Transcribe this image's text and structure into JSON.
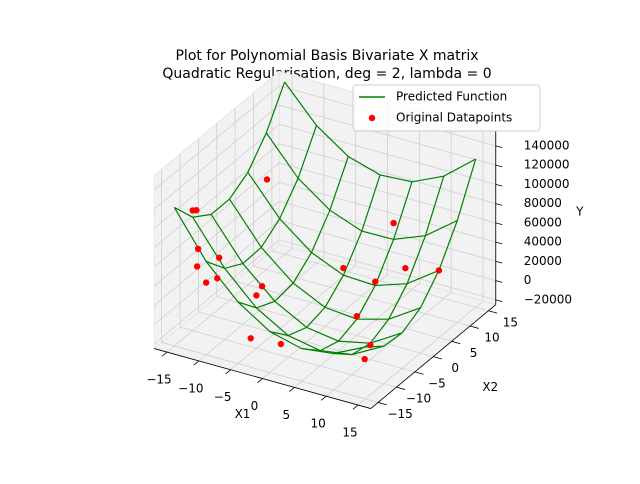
{
  "chart_data": {
    "type": "surface3d",
    "title": "Plot for Polynomial Basis Bivariate X matrix",
    "subtitle": "Quadratic Regularisation, deg = 2, lambda = 0",
    "xlabel": "X1",
    "ylabel": "X2",
    "zlabel": "Y",
    "xlim": [
      -17,
      17
    ],
    "ylim": [
      -17,
      17
    ],
    "zlim": [
      -25000,
      155000
    ],
    "xticks": [
      {
        "value": -15,
        "label": "−15"
      },
      {
        "value": -10,
        "label": "−10"
      },
      {
        "value": -5,
        "label": "−5"
      },
      0,
      5,
      10,
      15
    ],
    "yticks": [
      {
        "value": -15,
        "label": "−15"
      },
      {
        "value": -10,
        "label": "−10"
      },
      {
        "value": -5,
        "label": "−5"
      },
      0,
      5,
      10,
      15
    ],
    "zticks": [
      {
        "value": -20000,
        "label": "−20000"
      },
      0,
      20000,
      40000,
      60000,
      80000,
      100000,
      120000,
      140000
    ],
    "surface": {
      "name": "Predicted Function",
      "color": "#008000",
      "x": [
        -15,
        -10,
        -5,
        0,
        5,
        10,
        15
      ],
      "y": [
        -15,
        -10,
        -5,
        0,
        5,
        10,
        15
      ],
      "z": [
        [
          119000,
          93000,
          80000,
          80000,
          92000,
          117000,
          154000
        ],
        [
          72000,
          49000,
          38000,
          39000,
          53000,
          79000,
          118000
        ],
        [
          39000,
          17000,
          8000,
          11000,
          27000,
          55000,
          95000
        ],
        [
          17500,
          -2500,
          -10000,
          -5000,
          12500,
          42500,
          85000
        ],
        [
          9000,
          -9000,
          -15000,
          -8000,
          11000,
          43000,
          87000
        ],
        [
          13000,
          -4000,
          -8000,
          1000,
          22000,
          56000,
          102000
        ],
        [
          29000,
          14000,
          12000,
          22000,
          45000,
          81000,
          129000
        ]
      ]
    },
    "points": {
      "name": "Original Datapoints",
      "color": "#ff0000",
      "x": [
        -15,
        -15,
        -13,
        -12,
        -10,
        -10,
        -12,
        -7,
        -5,
        -12,
        5,
        0,
        5,
        5,
        10,
        12,
        0,
        -3,
        15,
        8
      ],
      "y": [
        -10,
        -9,
        -12,
        -14,
        -15,
        -12,
        -8,
        -5,
        -10,
        5,
        10,
        5,
        5,
        0,
        -5,
        -10,
        -12,
        -15,
        5,
        8
      ],
      "z": [
        100000,
        97000,
        70000,
        60000,
        50000,
        45000,
        50000,
        20000,
        30000,
        90000,
        60000,
        20000,
        15000,
        -5000,
        -10000,
        -5000,
        -5000,
        5000,
        45000,
        25000
      ]
    },
    "grid": true,
    "legend": "upper right"
  }
}
